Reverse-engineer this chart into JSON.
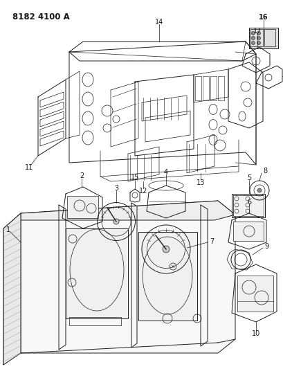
{
  "title": "8182 4100 A",
  "bg_color": "#ffffff",
  "line_color": "#1a1a1a",
  "title_fontsize": 8,
  "figsize": [
    4.1,
    5.33
  ],
  "dpi": 100,
  "label_fontsize": 7,
  "label_fontsize_bold": 7
}
